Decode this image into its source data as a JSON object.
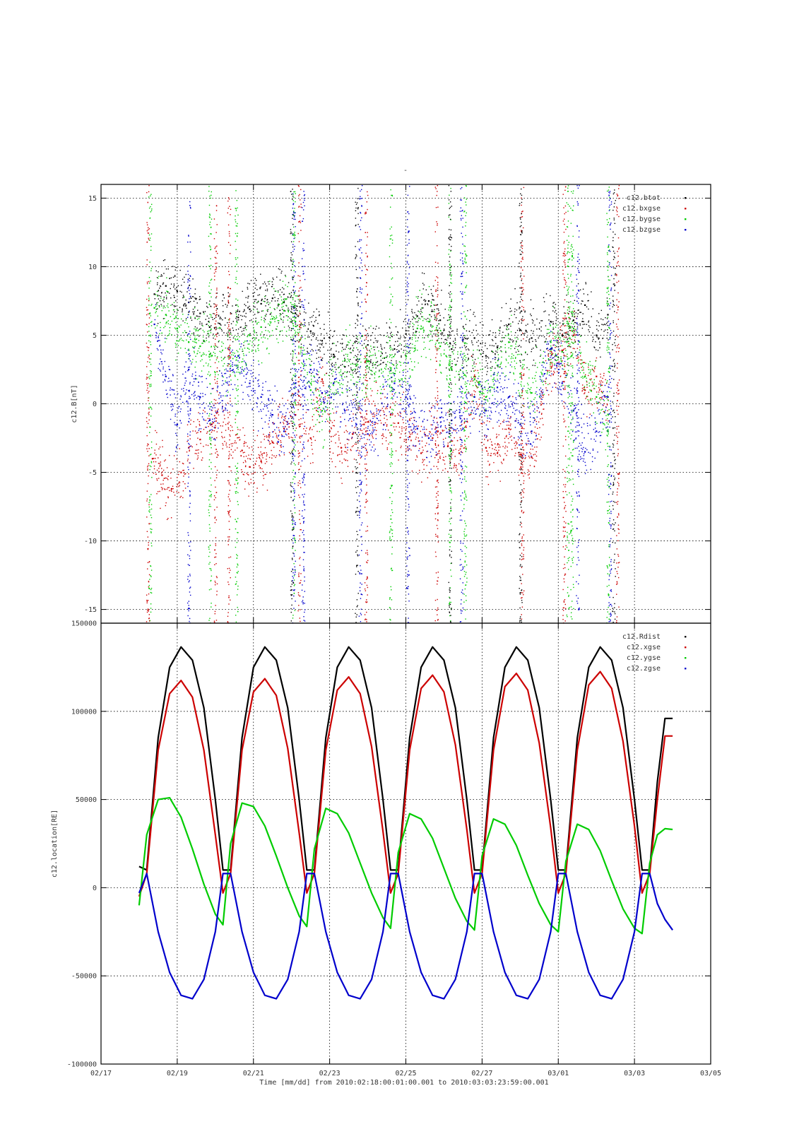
{
  "figure": {
    "title": "-",
    "xlabel": "Time [mm/dd]  from 2010:02:18:00:01:00.001  to  2010:03:03:23:59:00.001"
  },
  "chart_data": [
    {
      "type": "scatter",
      "ylabel": "c12.B[nT]",
      "ylim": [
        -16,
        16
      ],
      "yticks": [
        15,
        10,
        5,
        0,
        -5,
        -10,
        -15
      ],
      "grid": true,
      "legend_position": "top-right",
      "x_unit": "days since 02/17 00:00",
      "xlim": [
        0,
        16
      ],
      "xticks": [
        0,
        2,
        4,
        6,
        8,
        10,
        12,
        14,
        16
      ],
      "xtick_labels": [
        "02/17",
        "02/19",
        "02/21",
        "02/23",
        "02/25",
        "02/27",
        "03/01",
        "03/03",
        "03/05"
      ],
      "series": [
        {
          "name": "c12.btot",
          "color": "#000000",
          "x": [
            1.4,
            1.7,
            2.0,
            2.3,
            2.6,
            2.85,
            3.6,
            3.9,
            4.2,
            4.5,
            4.8,
            5.1,
            5.5,
            5.8,
            6.1,
            6.4,
            6.7,
            7.0,
            7.7,
            8.0,
            8.3,
            8.6,
            8.9,
            9.2,
            9.8,
            10.1,
            10.4,
            10.7,
            11.0,
            11.3,
            11.8,
            12.1,
            12.4,
            12.7,
            13.0,
            13.3
          ],
          "y": [
            8.0,
            8.6,
            8.2,
            7.4,
            6.6,
            5.6,
            6.3,
            6.9,
            7.3,
            7.7,
            7.4,
            6.6,
            5.3,
            4.6,
            3.6,
            2.7,
            3.2,
            4.3,
            4.0,
            5.1,
            6.4,
            7.5,
            6.1,
            4.0,
            4.8,
            3.5,
            4.1,
            5.8,
            5.4,
            4.8,
            6.0,
            5.0,
            6.1,
            7.2,
            5.0,
            6.5
          ]
        },
        {
          "name": "c12.bxgse",
          "color": "#cc0000",
          "x": [
            1.35,
            1.6,
            1.85,
            2.1,
            2.3,
            2.6,
            2.9,
            3.7,
            3.9,
            4.2,
            4.5,
            4.8,
            5.1,
            5.5,
            5.8,
            6.0,
            6.3,
            6.6,
            6.9,
            7.6,
            7.8,
            8.1,
            8.4,
            8.7,
            9.1,
            9.4,
            9.8,
            10.1,
            10.4,
            10.7,
            11.0,
            11.3,
            11.8,
            12.1,
            12.4,
            12.7,
            13.0,
            13.3
          ],
          "y": [
            -4.0,
            -5.2,
            -6.2,
            -5.0,
            -3.2,
            -2.6,
            -1.5,
            -3.4,
            -4.6,
            -4.2,
            -2.8,
            -1.8,
            -0.8,
            -2.5,
            1.8,
            -2.0,
            -3.2,
            -2.2,
            -1.5,
            -0.8,
            -1.4,
            -2.4,
            -3.6,
            -2.5,
            -3.1,
            -3.6,
            2.0,
            -3.2,
            -3.6,
            -1.8,
            -3.7,
            -3.9,
            3.0,
            3.9,
            5.0,
            1.0,
            2.0,
            0.5
          ]
        },
        {
          "name": "c12.bygse",
          "color": "#00cc00",
          "x": [
            1.4,
            1.7,
            2.0,
            2.3,
            2.6,
            2.85,
            3.6,
            3.9,
            4.2,
            4.5,
            4.8,
            5.1,
            5.5,
            5.8,
            6.1,
            6.4,
            6.7,
            7.0,
            7.7,
            8.0,
            8.3,
            8.6,
            8.9,
            9.2,
            9.8,
            10.1,
            10.4,
            10.7,
            11.0,
            11.3,
            11.8,
            12.1,
            12.4,
            12.7,
            13.0,
            13.3
          ],
          "y": [
            7.0,
            6.5,
            5.5,
            4.5,
            4.2,
            3.6,
            3.5,
            5.0,
            5.6,
            6.2,
            6.8,
            6.0,
            1.0,
            -0.5,
            1.5,
            3.2,
            2.8,
            3.1,
            2.2,
            3.5,
            5.5,
            6.0,
            4.2,
            2.5,
            1.8,
            0.5,
            2.8,
            4.5,
            2.2,
            0.8,
            4.5,
            3.8,
            5.5,
            2.0,
            0.5,
            -2.0
          ]
        },
        {
          "name": "c12.bzgse",
          "color": "#0000cc",
          "x": [
            1.4,
            1.7,
            2.0,
            2.3,
            2.6,
            2.85,
            3.6,
            3.9,
            4.2,
            4.5,
            4.8,
            5.1,
            5.5,
            5.8,
            6.1,
            6.4,
            6.7,
            7.0,
            7.7,
            8.0,
            8.3,
            8.6,
            8.9,
            9.2,
            9.8,
            10.1,
            10.4,
            10.7,
            11.0,
            11.3,
            11.8,
            12.1,
            12.4,
            12.7,
            13.0,
            13.3
          ],
          "y": [
            5.8,
            2.0,
            -1.5,
            2.5,
            0.5,
            -1.2,
            3.5,
            1.5,
            0.5,
            -0.8,
            -2.0,
            1.5,
            2.5,
            0.8,
            1.5,
            -0.5,
            -1.5,
            -2.2,
            1.5,
            0.5,
            -1.8,
            -2.5,
            -1.0,
            -1.2,
            0.5,
            -0.5,
            1.2,
            0.5,
            -1.5,
            -2.0,
            4.0,
            1.5,
            -0.5,
            -3.5,
            -2.0,
            0.5
          ]
        }
      ],
      "excursions": [
        {
          "series": "c12.bygse",
          "x": [
            1.28,
            2.85,
            3.55,
            5.05,
            7.6,
            9.15,
            9.55,
            12.25,
            12.35,
            13.3
          ]
        },
        {
          "series": "c12.bxgse",
          "x": [
            1.22,
            3.0,
            3.35,
            5.2,
            6.95,
            8.8,
            11.05,
            12.15,
            13.55
          ]
        },
        {
          "series": "c12.bzgse",
          "x": [
            2.3,
            5.05,
            5.3,
            6.8,
            8.05,
            9.45,
            12.5,
            13.35
          ]
        },
        {
          "series": "c12.btot",
          "x": [
            5.0,
            6.7,
            9.15,
            11.0,
            13.45
          ]
        }
      ]
    },
    {
      "type": "line",
      "ylabel": "c12.location[RE]",
      "ylim": [
        -100000,
        150000
      ],
      "yticks": [
        150000,
        100000,
        50000,
        0,
        -50000,
        -100000
      ],
      "grid": true,
      "legend_position": "top-right",
      "x_unit": "days since 02/17 00:00",
      "xlim": [
        0,
        16
      ],
      "xticks": [
        0,
        2,
        4,
        6,
        8,
        10,
        12,
        14,
        16
      ],
      "xtick_labels": [
        "02/17",
        "02/19",
        "02/21",
        "02/23",
        "02/25",
        "02/27",
        "03/01",
        "03/03",
        "03/05"
      ],
      "series": [
        {
          "name": "c12.Rdist",
          "color": "#000000",
          "x": [
            1.0,
            1.2,
            1.5,
            1.8,
            2.1,
            2.4,
            2.7,
            3.0,
            3.2,
            3.4,
            3.7,
            4.0,
            4.3,
            4.6,
            4.9,
            5.2,
            5.4,
            5.6,
            5.9,
            6.2,
            6.5,
            6.8,
            7.1,
            7.4,
            7.6,
            7.8,
            8.1,
            8.4,
            8.7,
            9.0,
            9.3,
            9.6,
            9.8,
            10.0,
            10.3,
            10.6,
            10.9,
            11.2,
            11.5,
            11.8,
            12.0,
            12.2,
            12.5,
            12.8,
            13.1,
            13.4,
            13.7,
            14.0,
            14.2,
            14.4,
            14.6,
            14.8,
            15.0
          ],
          "y": [
            12000,
            10000,
            85000,
            125000,
            136500,
            129000,
            102000,
            50000,
            10000,
            10000,
            85000,
            125000,
            136500,
            129000,
            102000,
            50000,
            10000,
            10000,
            85000,
            125000,
            136500,
            129000,
            102000,
            50000,
            10000,
            10000,
            85000,
            125000,
            136500,
            129000,
            102000,
            50000,
            10000,
            10000,
            85000,
            125000,
            136500,
            129000,
            102000,
            50000,
            10000,
            10000,
            85000,
            125000,
            136500,
            129000,
            102000,
            50000,
            10000,
            10000,
            60000,
            96000,
            96000
          ]
        },
        {
          "name": "c12.xgse",
          "color": "#cc0000",
          "x": [
            1.0,
            1.2,
            1.5,
            1.8,
            2.1,
            2.4,
            2.7,
            3.0,
            3.2,
            3.4,
            3.7,
            4.0,
            4.3,
            4.6,
            4.9,
            5.2,
            5.4,
            5.6,
            5.9,
            6.2,
            6.5,
            6.8,
            7.1,
            7.4,
            7.6,
            7.8,
            8.1,
            8.4,
            8.7,
            9.0,
            9.3,
            9.6,
            9.8,
            10.0,
            10.3,
            10.6,
            10.9,
            11.2,
            11.5,
            11.8,
            12.0,
            12.2,
            12.5,
            12.8,
            13.1,
            13.4,
            13.7,
            14.0,
            14.2,
            14.4,
            14.6,
            14.8,
            15.0
          ],
          "y": [
            -5000,
            8000,
            78000,
            110000,
            117500,
            108000,
            78000,
            30000,
            -3000,
            8000,
            78000,
            111000,
            118500,
            109000,
            79000,
            31000,
            -3000,
            8000,
            78000,
            112000,
            119500,
            110000,
            80000,
            32000,
            -3000,
            8000,
            78000,
            113000,
            120500,
            111000,
            81000,
            33000,
            -3000,
            8000,
            78000,
            114000,
            121500,
            112000,
            82000,
            34000,
            -3000,
            8000,
            78000,
            115000,
            122500,
            113000,
            83000,
            35000,
            -3000,
            8000,
            50000,
            86000,
            86000
          ]
        },
        {
          "name": "c12.ygse",
          "color": "#00cc00",
          "x": [
            1.0,
            1.2,
            1.5,
            1.8,
            2.1,
            2.4,
            2.7,
            3.0,
            3.2,
            3.4,
            3.7,
            4.0,
            4.3,
            4.6,
            4.9,
            5.2,
            5.4,
            5.6,
            5.9,
            6.2,
            6.5,
            6.8,
            7.1,
            7.4,
            7.6,
            7.8,
            8.1,
            8.4,
            8.7,
            9.0,
            9.3,
            9.6,
            9.8,
            10.0,
            10.3,
            10.6,
            10.9,
            11.2,
            11.5,
            11.8,
            12.0,
            12.2,
            12.5,
            12.8,
            13.1,
            13.4,
            13.7,
            14.0,
            14.2,
            14.4,
            14.6,
            14.8,
            15.0
          ],
          "y": [
            -10000,
            30000,
            50000,
            51000,
            40000,
            22000,
            2000,
            -15000,
            -21000,
            25000,
            48000,
            46000,
            35000,
            18000,
            0,
            -16000,
            -22000,
            22000,
            45000,
            42000,
            31000,
            14000,
            -3000,
            -17000,
            -23000,
            20000,
            42000,
            39000,
            28000,
            11000,
            -6000,
            -19000,
            -24000,
            18000,
            39000,
            36000,
            24000,
            7000,
            -9000,
            -21000,
            -25000,
            15000,
            36000,
            33000,
            21000,
            4000,
            -12000,
            -23000,
            -26000,
            14000,
            30000,
            33500,
            33000
          ]
        },
        {
          "name": "c12.zgse",
          "color": "#0000cc",
          "x": [
            1.0,
            1.2,
            1.5,
            1.8,
            2.1,
            2.4,
            2.7,
            3.0,
            3.2,
            3.4,
            3.7,
            4.0,
            4.3,
            4.6,
            4.9,
            5.2,
            5.4,
            5.6,
            5.9,
            6.2,
            6.5,
            6.8,
            7.1,
            7.4,
            7.6,
            7.8,
            8.1,
            8.4,
            8.7,
            9.0,
            9.3,
            9.6,
            9.8,
            10.0,
            10.3,
            10.6,
            10.9,
            11.2,
            11.5,
            11.8,
            12.0,
            12.2,
            12.5,
            12.8,
            13.1,
            13.4,
            13.7,
            14.0,
            14.2,
            14.4,
            14.6,
            14.8,
            15.0
          ],
          "y": [
            -3000,
            8000,
            -25000,
            -48000,
            -61000,
            -63000,
            -52000,
            -25000,
            8000,
            8000,
            -25000,
            -48000,
            -61000,
            -63000,
            -52000,
            -25000,
            8000,
            8000,
            -25000,
            -48000,
            -61000,
            -63000,
            -52000,
            -25000,
            8000,
            8000,
            -25000,
            -48000,
            -61000,
            -63000,
            -52000,
            -25000,
            8000,
            8000,
            -25000,
            -48000,
            -61000,
            -63000,
            -52000,
            -25000,
            8000,
            8000,
            -25000,
            -48000,
            -61000,
            -63000,
            -52000,
            -25000,
            8000,
            8000,
            -9000,
            -18000,
            -24000
          ]
        }
      ]
    }
  ]
}
